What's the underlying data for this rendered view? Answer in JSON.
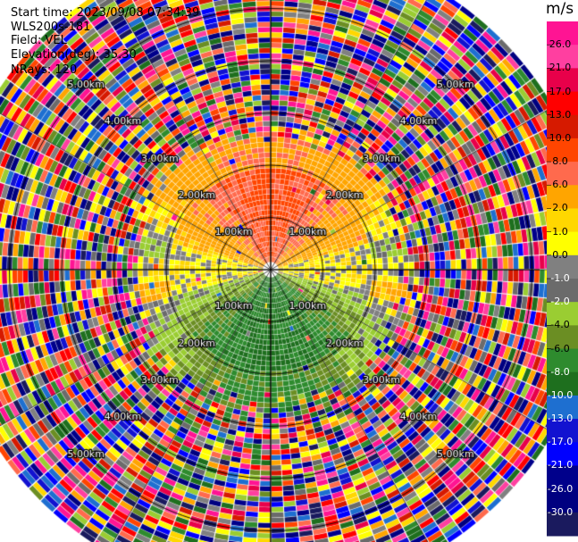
{
  "header": {
    "start_time": "Start time: 2023/09/08 07:34:39",
    "instrument": "WLS200s-181",
    "field": "Field: VEL",
    "elevation": "Elevation(deg): 35.30",
    "nrays": "NRays: 120"
  },
  "colorbar": {
    "unit": "m/s",
    "ticks": [
      "26.0",
      "21.0",
      "17.0",
      "13.0",
      "10.0",
      "8.0",
      "6.0",
      "2.0",
      "1.0",
      "0.0",
      "-1.0",
      "-2.0",
      "-4.0",
      "-6.0",
      "-8.0",
      "-10.0",
      "-13.0",
      "-17.0",
      "-21.0",
      "-26.0",
      "-30.0"
    ],
    "bin_colors": [
      "#ff1493",
      "#ff3fa0",
      "#e8004a",
      "#ff0000",
      "#d61a00",
      "#ff4500",
      "#ff6a4d",
      "#ffa500",
      "#ffd700",
      "#ffff00",
      "#808080",
      "#6b6b6b",
      "#9acd32",
      "#6b8e23",
      "#2e8b2e",
      "#1e6f1e",
      "#1e6fd0",
      "#1212d0",
      "#0000ff",
      "#00008b",
      "#000080",
      "#1a1a5e"
    ],
    "label_colors": [
      "#000000",
      "#000000",
      "#000000",
      "#000000",
      "#000000",
      "#000000",
      "#000000",
      "#000000",
      "#000000",
      "#000000",
      "#ffffff",
      "#ffffff",
      "#000000",
      "#000000",
      "#ffffff",
      "#ffffff",
      "#ffffff",
      "#ffffff",
      "#ffffff",
      "#ffffff",
      "#ffffff"
    ]
  },
  "chart_data": {
    "type": "heatmap",
    "title": "",
    "projection": "polar-ppi",
    "n_rays": 120,
    "units": "m/s",
    "value_range": [
      -30,
      26
    ],
    "range_rings_km": [
      1,
      2,
      3,
      4,
      5
    ],
    "ring_labels": [
      "1.00km",
      "2.00km",
      "3.00km",
      "4.00km",
      "5.00km"
    ],
    "clear_signal_range_km": [
      0,
      2.6
    ],
    "noise_region_range_km": [
      2.6,
      6.2
    ],
    "velocity_pattern": {
      "north_sector": "positive (+6 to +10 m/s)",
      "east_west": "near zero (-1 to +2 m/s)",
      "south_sector": "negative (-4 to -10 m/s)"
    }
  }
}
